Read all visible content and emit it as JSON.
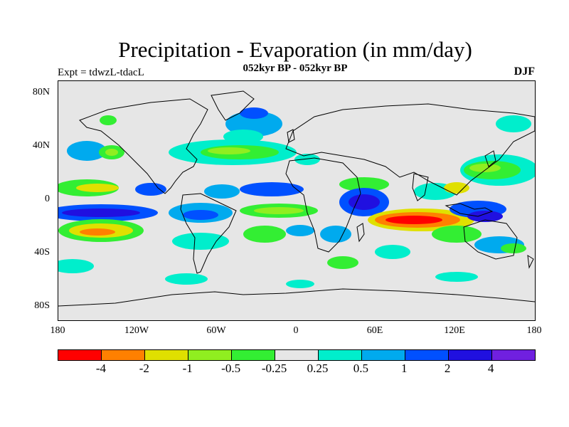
{
  "title": "Precipitation - Evaporation (in mm/day)",
  "subtitle": "052kyr BP - 052kyr BP",
  "expt": "Expt = tdwzL-tdacL",
  "season": "DJF",
  "lat_ticks": [
    "80N",
    "40N",
    "0",
    "40S",
    "80S"
  ],
  "lon_ticks": [
    "180",
    "120W",
    "60W",
    "0",
    "60E",
    "120E",
    "180"
  ],
  "colorbar": {
    "colors": [
      "#ff0000",
      "#ff8000",
      "#e0e000",
      "#90ee20",
      "#33ee33",
      "#e6e6e6",
      "#00eecc",
      "#00aaee",
      "#0050ff",
      "#2010e0",
      "#7020e0"
    ],
    "labels": [
      "-4",
      "-2",
      "-1",
      "-0.5",
      "-0.25",
      "0.25",
      "0.5",
      "1",
      "2",
      "4"
    ]
  }
}
